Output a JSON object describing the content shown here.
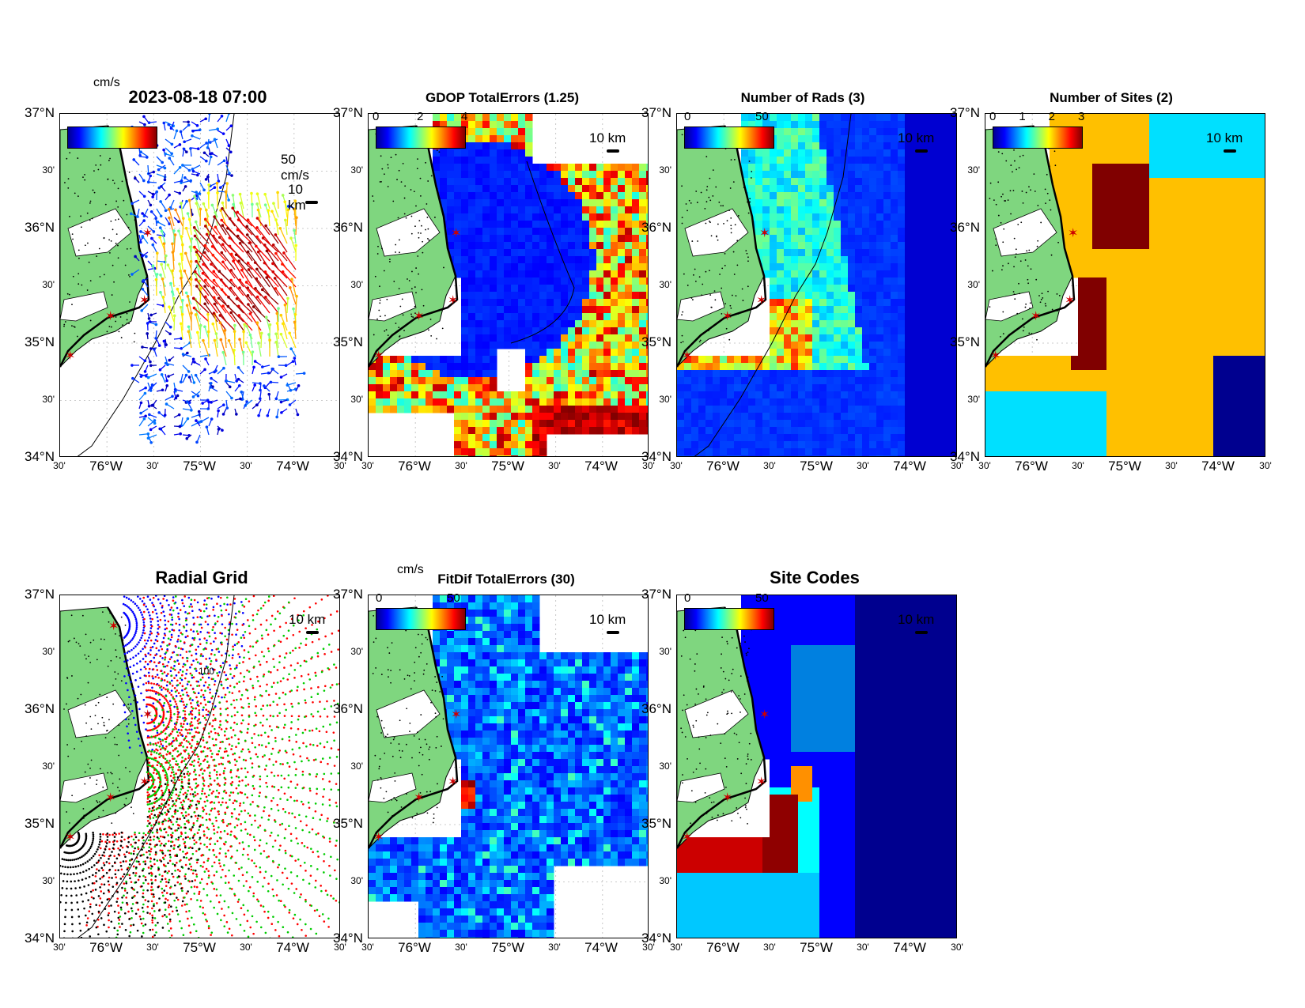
{
  "colors": {
    "land": "#7fd67f",
    "marker": "#cc0000",
    "cb_start": "#00008f",
    "cb_end": "#800000"
  },
  "axes": {
    "lat_major": [
      "37°N",
      "36°N",
      "35°N",
      "34°N"
    ],
    "lat_minor": "30'",
    "lon_major": [
      "76°W",
      "75°W",
      "74°W"
    ],
    "lon_minor": "30'"
  },
  "scale_label": "10 km",
  "panels": {
    "currents": {
      "title": "2023-08-18 07:00",
      "unit": "cm/s",
      "vector_label": "50 cm/s"
    },
    "gdop": {
      "title": "GDOP TotalErrors (1.25)",
      "cb_ticks": [
        "0",
        "2",
        "4"
      ]
    },
    "rads": {
      "title": "Number of Rads (3)",
      "cb_ticks": [
        "0",
        "50"
      ]
    },
    "sites": {
      "title": "Number of Sites (2)",
      "cb_ticks": [
        "0",
        "1",
        "2",
        "3"
      ]
    },
    "radial": {
      "title": "Radial Grid",
      "contour": "100"
    },
    "fitdif": {
      "title": "FitDif TotalErrors (30)",
      "unit": "cm/s",
      "cb_ticks": [
        "0",
        "50"
      ]
    },
    "codes": {
      "title": "Site Codes",
      "cb_ticks": [
        "0",
        "50"
      ]
    }
  }
}
